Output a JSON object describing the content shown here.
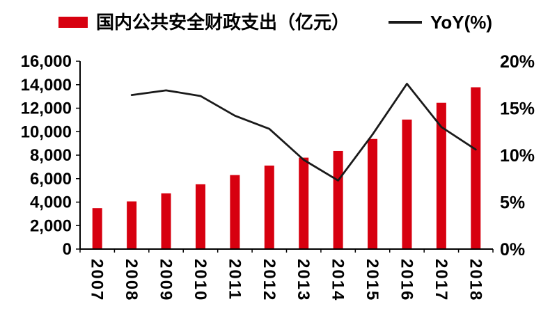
{
  "page": {
    "background": "#ffffff"
  },
  "legend": {
    "bar_series_label": "国内公共安全财政支出（亿元）",
    "line_series_label": "YoY(%)"
  },
  "colors": {
    "bar": "#d7000f",
    "line": "#1a1a1a",
    "axis": "#000000",
    "text": "#000000"
  },
  "chart_data": {
    "type": "combo-bar-line",
    "title": "",
    "categories": [
      "2007",
      "2008",
      "2009",
      "2010",
      "2011",
      "2012",
      "2013",
      "2014",
      "2015",
      "2016",
      "2017",
      "2018"
    ],
    "series": [
      {
        "name": "国内公共安全财政支出（亿元）",
        "type": "bar",
        "axis": "left",
        "values": [
          3486,
          4060,
          4744,
          5518,
          6304,
          7112,
          7787,
          8358,
          9380,
          11032,
          12461,
          13781
        ]
      },
      {
        "name": "YoY(%)",
        "type": "line",
        "axis": "right",
        "values": [
          null,
          16.4,
          16.9,
          16.3,
          14.2,
          12.8,
          9.5,
          7.3,
          12.2,
          17.6,
          13.0,
          10.6
        ]
      }
    ],
    "left_axis": {
      "min": 0,
      "max": 16000,
      "step": 2000,
      "tick_labels": [
        "0",
        "2,000",
        "4,000",
        "6,000",
        "8,000",
        "10,000",
        "12,000",
        "14,000",
        "16,000"
      ]
    },
    "right_axis": {
      "min": 0,
      "max": 20,
      "step": 5,
      "tick_labels": [
        "0%",
        "5%",
        "10%",
        "15%",
        "20%"
      ]
    },
    "grid": false,
    "legend_position": "top"
  }
}
